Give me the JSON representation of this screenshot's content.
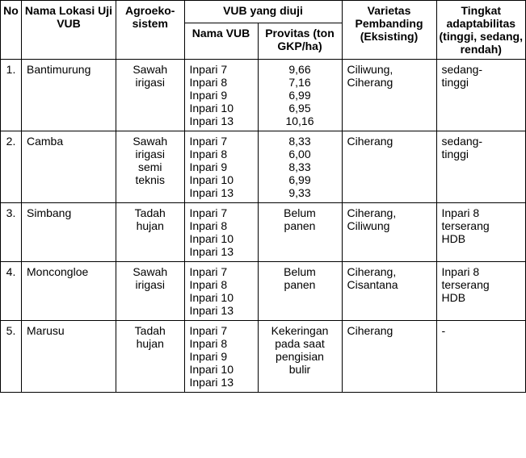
{
  "headers": {
    "no": "No",
    "lokasi": "Nama Lokasi Uji VUB",
    "agro": "Agroeko-sistem",
    "vub_group": "VUB yang diuji",
    "vub_nama": "Nama VUB",
    "vub_prov": "Provitas (ton GKP/ha)",
    "varietas": "Varietas Pembanding (Eksisting)",
    "adapt": "Tingkat adaptabilitas (tinggi, sedang, rendah)"
  },
  "rows": [
    {
      "no": "1.",
      "lokasi": "Bantimurung",
      "agro": [
        "Sawah",
        "irigasi"
      ],
      "nama_vub": [
        "Inpari 7",
        "Inpari 8",
        "Inpari 9",
        "Inpari 10",
        "Inpari 13"
      ],
      "provitas": [
        "9,66",
        "7,16",
        "6,99",
        "6,95",
        "10,16"
      ],
      "varietas": [
        "Ciliwung,",
        "Ciherang"
      ],
      "adapt": [
        "sedang-",
        "tinggi"
      ]
    },
    {
      "no": "2.",
      "lokasi": "Camba",
      "agro": [
        "Sawah",
        "irigasi",
        "semi",
        "teknis"
      ],
      "nama_vub": [
        "Inpari 7",
        "Inpari 8",
        "Inpari 9",
        "Inpari 10",
        "Inpari 13"
      ],
      "provitas": [
        "8,33",
        "6,00",
        "8,33",
        "6,99",
        "9,33"
      ],
      "varietas": [
        "Ciherang"
      ],
      "adapt": [
        "sedang-",
        "tinggi"
      ]
    },
    {
      "no": "3.",
      "lokasi": "Simbang",
      "agro": [
        "Tadah",
        "hujan"
      ],
      "nama_vub": [
        "Inpari 7",
        "Inpari 8",
        "Inpari 10",
        "Inpari 13"
      ],
      "provitas": [
        "Belum",
        "panen"
      ],
      "varietas": [
        "Ciherang,",
        "Ciliwung"
      ],
      "adapt": [
        "Inpari 8",
        "terserang",
        "HDB"
      ]
    },
    {
      "no": "4.",
      "lokasi": "Moncongloe",
      "agro": [
        "Sawah",
        "irigasi"
      ],
      "nama_vub": [
        "Inpari 7",
        "Inpari 8",
        "Inpari 10",
        "Inpari 13"
      ],
      "provitas": [
        "Belum",
        "panen"
      ],
      "varietas": [
        "Ciherang,",
        "Cisantana"
      ],
      "adapt": [
        "Inpari 8",
        "terserang",
        "HDB"
      ]
    },
    {
      "no": "5.",
      "lokasi": "Marusu",
      "agro": [
        "Tadah",
        "hujan"
      ],
      "nama_vub": [
        "Inpari 7",
        "Inpari 8",
        "Inpari 9",
        "Inpari 10",
        "Inpari 13"
      ],
      "provitas": [
        "Kekeringan",
        "pada saat",
        "pengisian",
        "bulir"
      ],
      "varietas": [
        "Ciherang"
      ],
      "adapt": [
        "-"
      ]
    }
  ]
}
